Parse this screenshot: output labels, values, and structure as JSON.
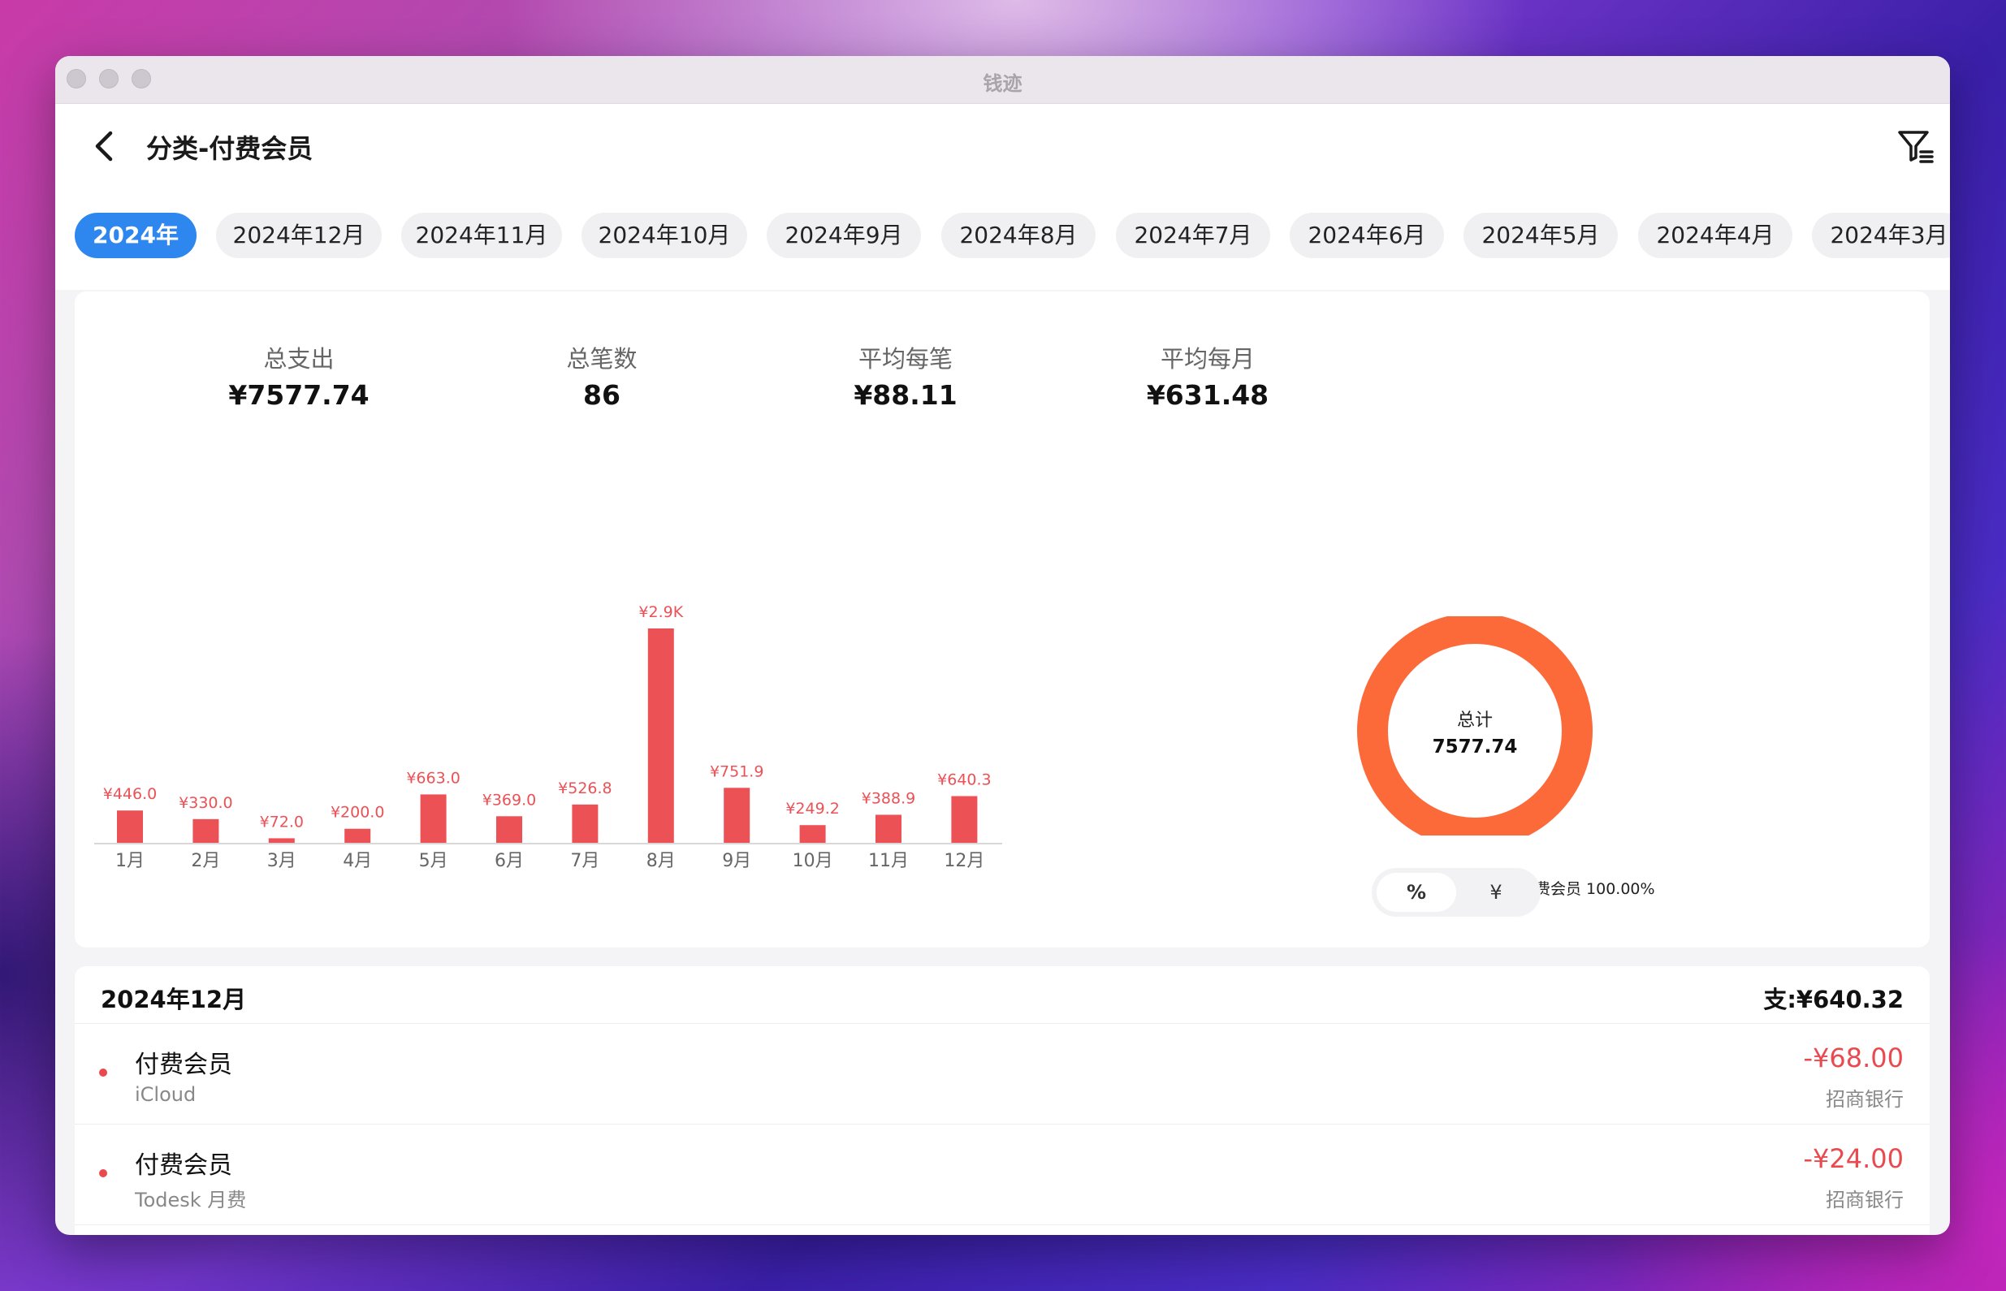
{
  "window": {
    "title": "钱迹"
  },
  "header": {
    "title": "分类-付费会员"
  },
  "tabs": [
    {
      "label": "2024年",
      "active": true
    },
    {
      "label": "2024年12月"
    },
    {
      "label": "2024年11月"
    },
    {
      "label": "2024年10月"
    },
    {
      "label": "2024年9月"
    },
    {
      "label": "2024年8月"
    },
    {
      "label": "2024年7月"
    },
    {
      "label": "2024年6月"
    },
    {
      "label": "2024年5月"
    },
    {
      "label": "2024年4月"
    },
    {
      "label": "2024年3月"
    }
  ],
  "stats": {
    "total_expense_label": "总支出",
    "total_expense": "¥7577.74",
    "count_label": "总笔数",
    "count": "86",
    "avg_per_item_label": "平均每笔",
    "avg_per_item": "¥88.11",
    "avg_per_month_label": "平均每月",
    "avg_per_month": "¥631.48"
  },
  "chart_data": [
    {
      "type": "bar",
      "categories": [
        "1月",
        "2月",
        "3月",
        "4月",
        "5月",
        "6月",
        "7月",
        "8月",
        "9月",
        "10月",
        "11月",
        "12月"
      ],
      "values": [
        446.0,
        330.0,
        72.0,
        200.0,
        663.0,
        369.0,
        526.8,
        2900,
        751.9,
        249.2,
        388.9,
        640.3
      ],
      "data_labels": [
        "¥446.0",
        "¥330.0",
        "¥72.0",
        "¥200.0",
        "¥663.0",
        "¥369.0",
        "¥526.8",
        "¥2.9K",
        "¥751.9",
        "¥249.2",
        "¥388.9",
        "¥640.3"
      ],
      "color": "#ec5156"
    },
    {
      "type": "pie",
      "center_label": "总计",
      "center_value": "7577.74",
      "slices": [
        {
          "name": "付费会员",
          "value": 100.0,
          "label": "付费会员 100.00%",
          "color": "#fc6a3a"
        }
      ]
    }
  ],
  "segmented": {
    "percent": "%",
    "yuan": "¥",
    "selected": "%"
  },
  "list": {
    "month": "2024年12月",
    "total": "支:¥640.32",
    "items": [
      {
        "category": "付费会员",
        "note": "iCloud",
        "amount": "-¥68.00",
        "account": "招商银行"
      },
      {
        "category": "付费会员",
        "note": "Todesk 月费",
        "amount": "-¥24.00",
        "account": "招商银行"
      }
    ]
  },
  "colors": {
    "accent": "#2e86ef",
    "expense": "#e94a4f",
    "donut": "#fc6a3a"
  }
}
